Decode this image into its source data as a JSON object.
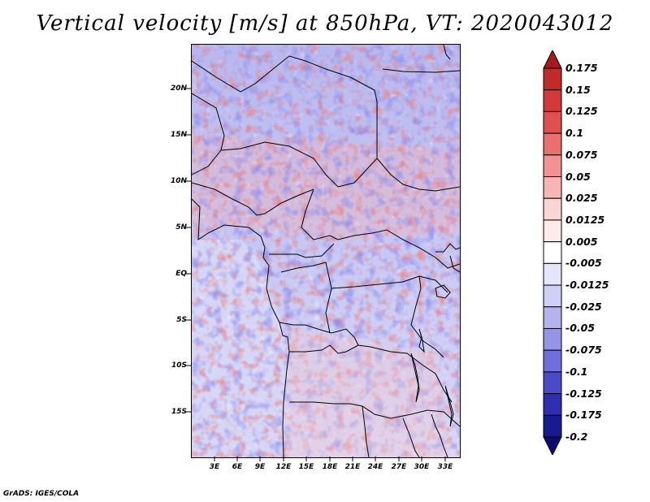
{
  "title": "Vertical velocity [m/s] at 850hPa, VT: 2020043012",
  "footer": "GrADS: IGES/COLA",
  "map": {
    "lat_ticks": [
      "20N",
      "15N",
      "10N",
      "5N",
      "EQ",
      "5S",
      "10S",
      "15S"
    ],
    "lon_ticks": [
      "3E",
      "6E",
      "9E",
      "12E",
      "15E",
      "18E",
      "21E",
      "24E",
      "27E",
      "30E",
      "33E"
    ]
  },
  "colorbar": {
    "labels": [
      "0.175",
      "0.15",
      "0.125",
      "0.1",
      "0.075",
      "0.05",
      "0.025",
      "0.0125",
      "0.005",
      "-0.005",
      "-0.0125",
      "-0.025",
      "-0.05",
      "-0.075",
      "-0.1",
      "-0.125",
      "-0.175",
      "-0.2"
    ],
    "colors": [
      "#a51a1a",
      "#c02a2a",
      "#d23a3a",
      "#e05050",
      "#ea7070",
      "#f29292",
      "#f7b5b5",
      "#fbd4d4",
      "#fdeaea",
      "#ffffff",
      "#e6e6fb",
      "#cfcff7",
      "#b3b3f0",
      "#9595e8",
      "#7070dc",
      "#4b4bc8",
      "#2e2eb0",
      "#1a1a90",
      "#0d0d70"
    ]
  }
}
